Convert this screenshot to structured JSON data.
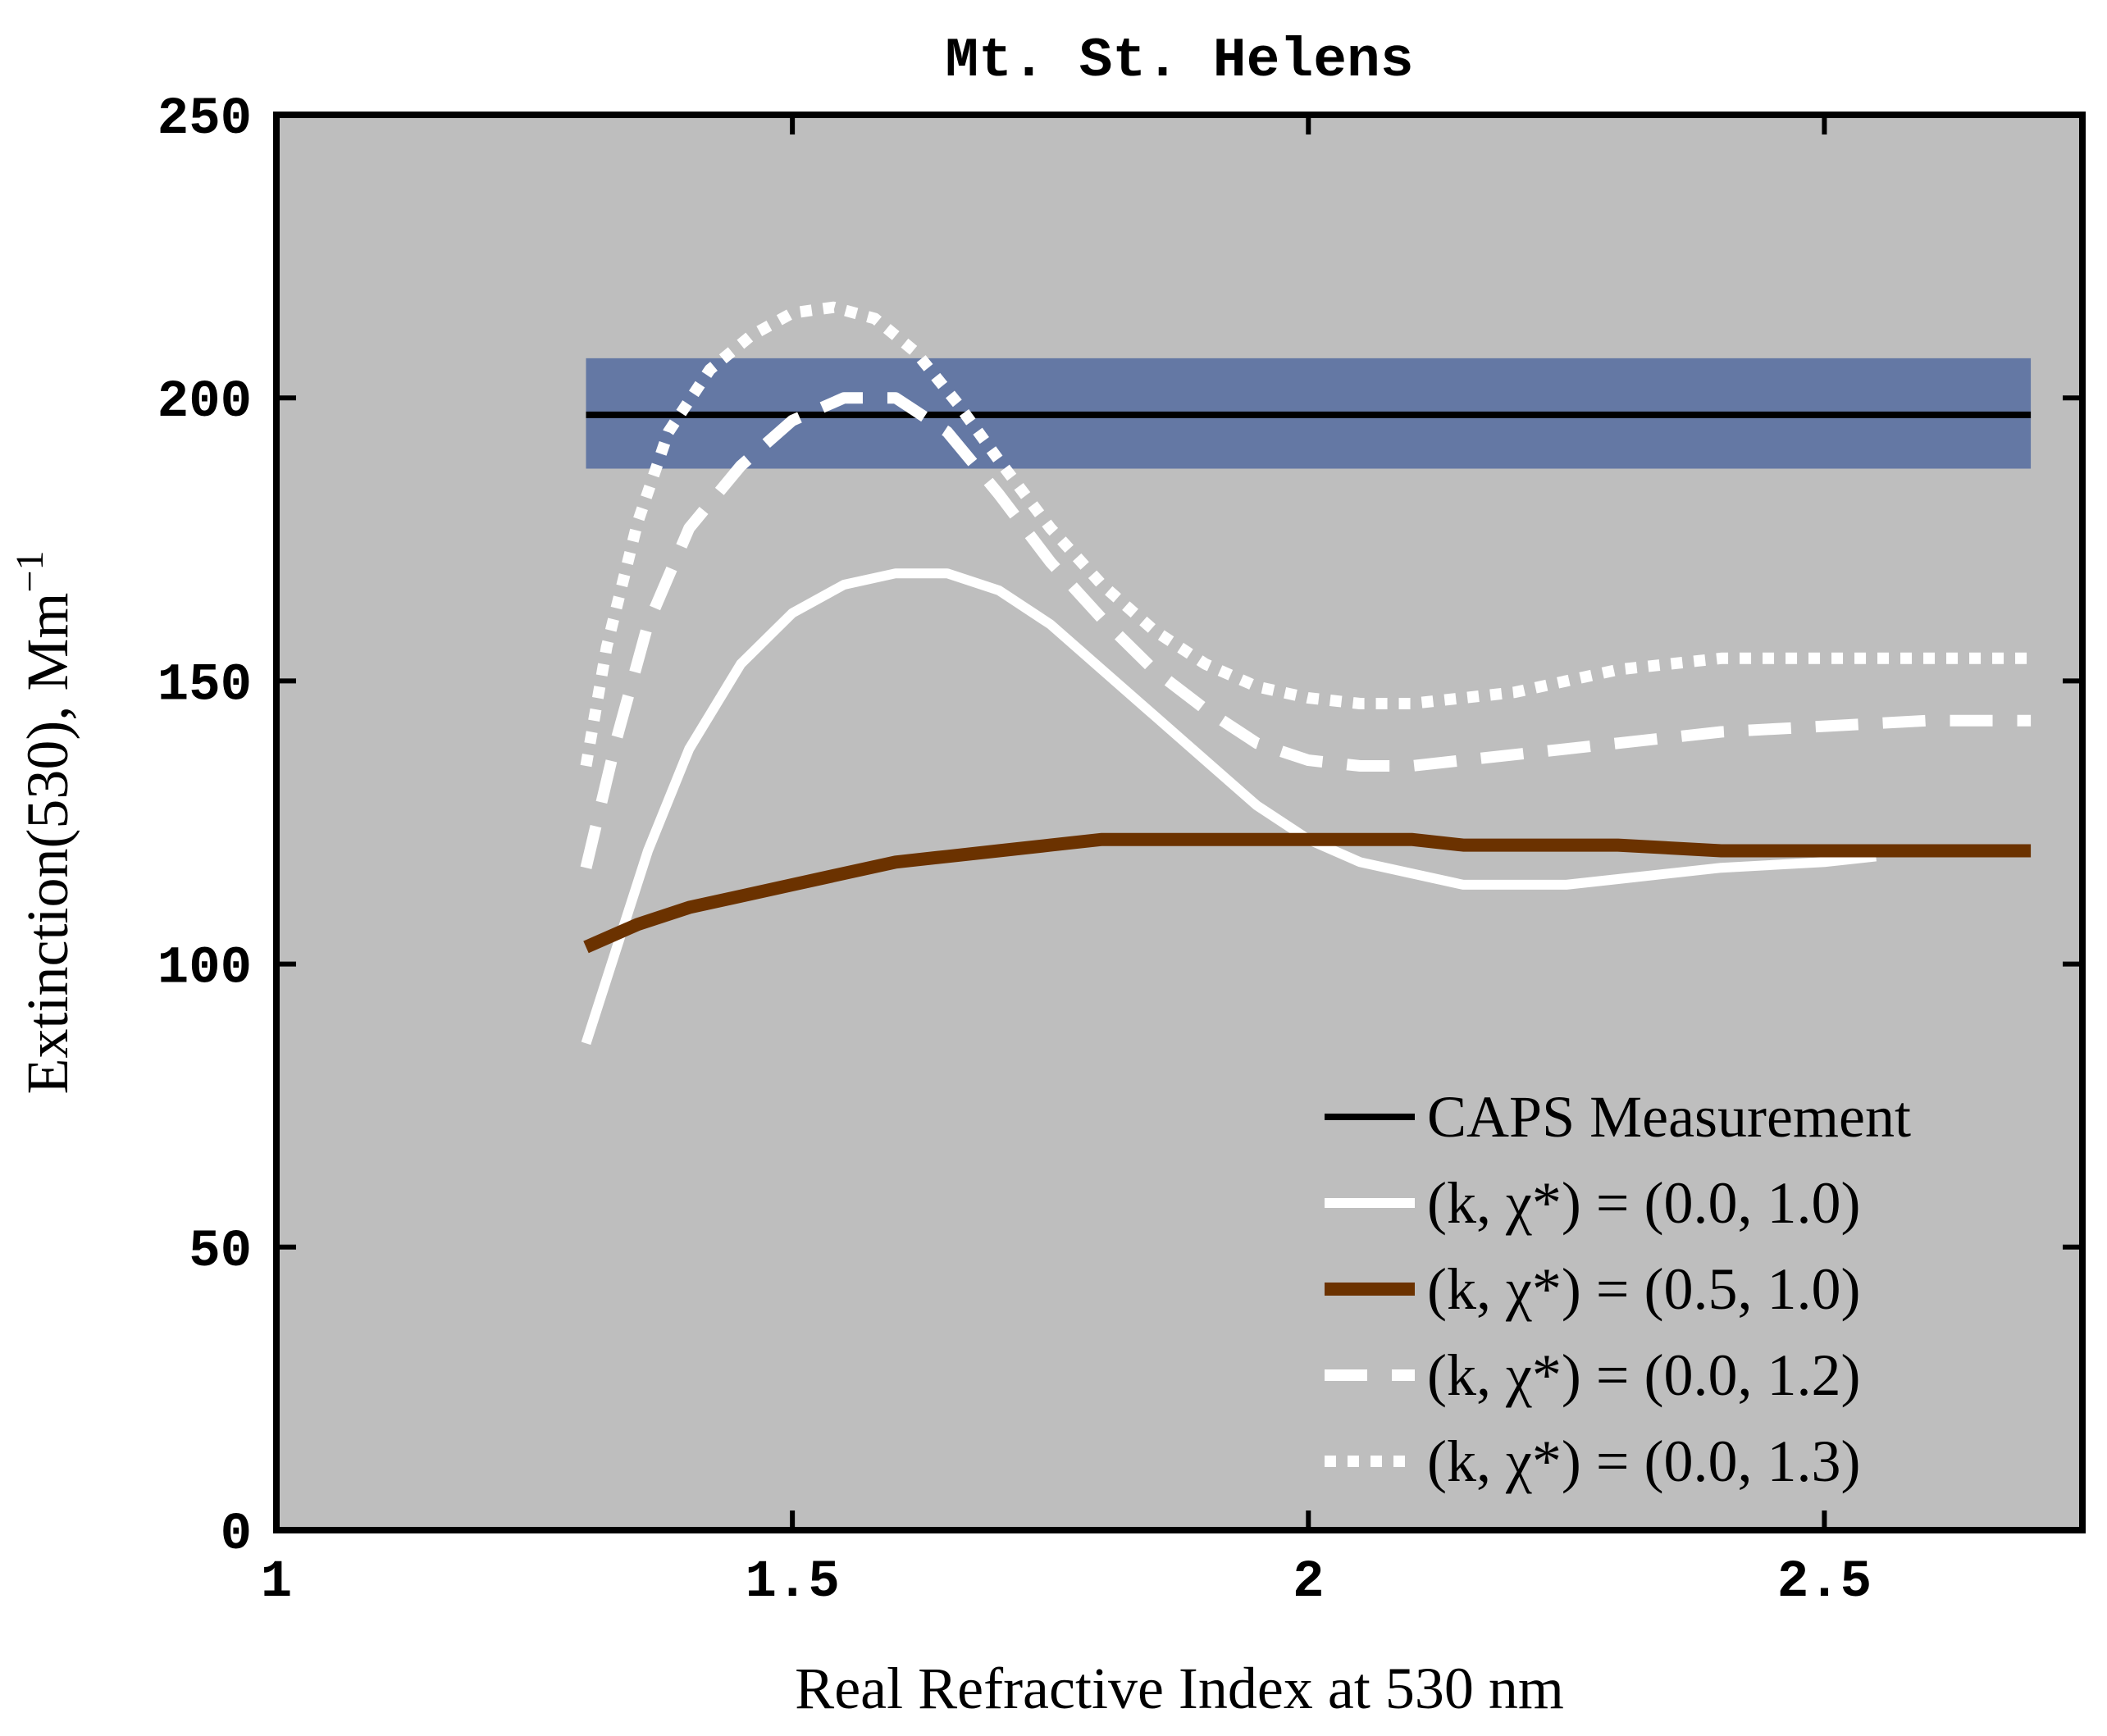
{
  "chart_data": {
    "type": "line",
    "title": "Mt. St. Helens",
    "xlabel": "Real Refractive Index at 530 nm",
    "ylabel_main": "Extinction(530), Mm",
    "ylabel_sup": "−1",
    "xlim": [
      1,
      2.75
    ],
    "ylim": [
      0,
      250
    ],
    "x_ticks": [
      1,
      1.5,
      2,
      2.5
    ],
    "x_tick_labels": [
      "1",
      "1.5",
      "2",
      "2.5"
    ],
    "y_ticks": [
      0,
      50,
      100,
      150,
      200,
      250
    ],
    "y_tick_labels": [
      "0",
      "50",
      "100",
      "150",
      "200",
      "250"
    ],
    "grid": false,
    "background_color": "#bebebe",
    "measurement": {
      "name": "CAPS Measurement",
      "value": 197,
      "band": [
        187.5,
        207
      ],
      "x_range": [
        1.3,
        2.7
      ],
      "band_color": "#6478a4",
      "line_color": "#000000"
    },
    "series": [
      {
        "name": "(k, χ*) = (0.0, 1.0)",
        "color": "#ffffff",
        "dash": "solid",
        "x": [
          1.3,
          1.33,
          1.36,
          1.4,
          1.45,
          1.5,
          1.55,
          1.6,
          1.65,
          1.7,
          1.75,
          1.8,
          1.85,
          1.9,
          1.95,
          2.0,
          2.05,
          2.1,
          2.15,
          2.2,
          2.25,
          2.3,
          2.4,
          2.5,
          2.55
        ],
        "y": [
          86,
          103,
          120,
          138,
          153,
          162,
          167,
          169,
          169,
          166,
          160,
          152,
          144,
          136,
          128,
          122,
          118,
          116,
          114,
          114,
          114,
          115,
          117,
          118,
          119
        ]
      },
      {
        "name": "(k, χ*) = (0.5, 1.0)",
        "color": "#6b3200",
        "dash": "solid",
        "x": [
          1.3,
          1.35,
          1.4,
          1.45,
          1.5,
          1.55,
          1.6,
          1.65,
          1.7,
          1.75,
          1.8,
          1.85,
          1.9,
          2.0,
          2.1,
          2.15,
          2.2,
          2.3,
          2.4,
          2.5,
          2.6,
          2.7
        ],
        "y": [
          103,
          107,
          110,
          112,
          114,
          116,
          118,
          119,
          120,
          121,
          122,
          122,
          122,
          122,
          122,
          121,
          121,
          121,
          120,
          120,
          120,
          120
        ]
      },
      {
        "name": "(k, χ*) = (0.0, 1.2)",
        "color": "#ffffff",
        "dash": "dashed",
        "x": [
          1.3,
          1.33,
          1.36,
          1.4,
          1.45,
          1.5,
          1.55,
          1.6,
          1.65,
          1.7,
          1.75,
          1.8,
          1.85,
          1.9,
          1.95,
          2.0,
          2.05,
          2.1,
          2.15,
          2.2,
          2.3,
          2.4,
          2.5,
          2.6,
          2.7
        ],
        "y": [
          117,
          140,
          160,
          177,
          188,
          196,
          200,
          200,
          194,
          183,
          171,
          161,
          152,
          145,
          139,
          136,
          135,
          135,
          136,
          137,
          139,
          141,
          142,
          143,
          143
        ]
      },
      {
        "name": "(k, χ*) = (0.0, 1.3)",
        "color": "#ffffff",
        "dash": "dotted",
        "x": [
          1.3,
          1.32,
          1.35,
          1.38,
          1.42,
          1.46,
          1.5,
          1.54,
          1.58,
          1.62,
          1.66,
          1.7,
          1.75,
          1.8,
          1.85,
          1.9,
          1.95,
          2.0,
          2.05,
          2.1,
          2.15,
          2.2,
          2.3,
          2.4,
          2.5,
          2.6,
          2.7
        ],
        "y": [
          135,
          156,
          178,
          194,
          205,
          211,
          215,
          216,
          214,
          208,
          199,
          189,
          177,
          167,
          159,
          153,
          149,
          147,
          146,
          146,
          147,
          148,
          152,
          154,
          154,
          154,
          154
        ]
      }
    ]
  }
}
